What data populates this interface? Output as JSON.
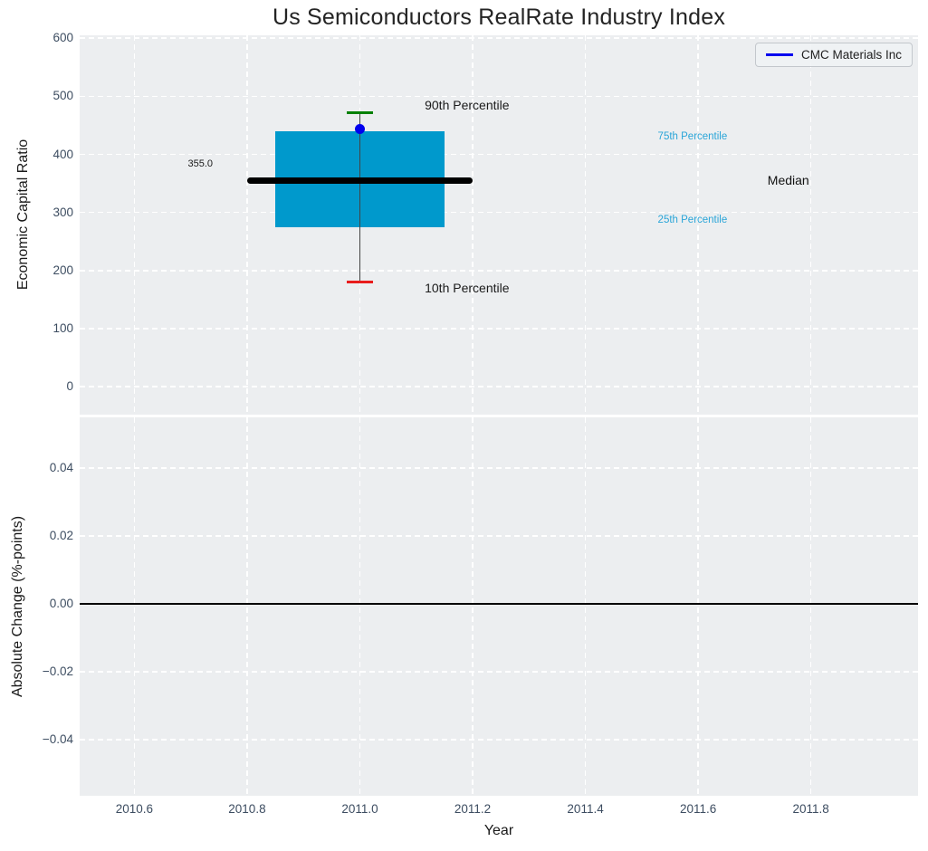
{
  "title": "Us Semiconductors RealRate Industry Index",
  "xlabel": "Year",
  "legend": {
    "label": "CMC Materials Inc",
    "color": "#0000ee"
  },
  "colors": {
    "plot_bg": "#eceef0",
    "grid": "#ffffff",
    "tick_text": "#3d4d61",
    "box": "#0099cc",
    "median": "#000000",
    "whisker": "#444444",
    "cap_top": "#008000",
    "cap_bottom": "#e81c1c",
    "marker": "#0000ee",
    "accent_text": "#2aa5d8",
    "zero_line": "#000000"
  },
  "chart_data": [
    {
      "type": "boxplot",
      "subplot": "top",
      "title": "Us Semiconductors RealRate Industry Index",
      "ylabel": "Economic Capital Ratio",
      "ylim": [
        -48,
        605
      ],
      "yticks": [
        {
          "value": 0,
          "label": "0"
        },
        {
          "value": 100,
          "label": "100"
        },
        {
          "value": 200,
          "label": "200"
        },
        {
          "value": 300,
          "label": "300"
        },
        {
          "value": 400,
          "label": "400"
        },
        {
          "value": 500,
          "label": "500"
        },
        {
          "value": 600,
          "label": "600"
        }
      ],
      "xlim": [
        2010.503,
        2011.99
      ],
      "xticks": [
        {
          "value": 2010.6,
          "label": "2010.6"
        },
        {
          "value": 2010.8,
          "label": "2010.8"
        },
        {
          "value": 2011.0,
          "label": "2011.0"
        },
        {
          "value": 2011.2,
          "label": "2011.2"
        },
        {
          "value": 2011.4,
          "label": "2011.4"
        },
        {
          "value": 2011.6,
          "label": "2011.6"
        },
        {
          "value": 2011.8,
          "label": "2011.8"
        }
      ],
      "grid": "dashed-white",
      "legend_position": "upper right",
      "box": {
        "x_center": 2011.0,
        "box_x": [
          2010.85,
          2011.15
        ],
        "median_x": [
          2010.8,
          2011.2
        ],
        "cap_x": [
          2010.976,
          2011.024
        ],
        "p10": 180,
        "p25": 275,
        "median": 355,
        "p75": 440,
        "p90": 472,
        "company_value": 444,
        "median_label": "355.0"
      },
      "annotations": [
        {
          "text": "90th Percentile",
          "x": 2011.19,
          "y": 485,
          "color": "#1a1a1a",
          "size": 14
        },
        {
          "text": "10th Percentile",
          "x": 2011.19,
          "y": 170,
          "color": "#1a1a1a",
          "size": 14
        },
        {
          "text": "75th Percentile",
          "x": 2011.59,
          "y": 430,
          "color": "#2aa5d8",
          "size": 11.5
        },
        {
          "text": "25th Percentile",
          "x": 2011.59,
          "y": 287,
          "color": "#2aa5d8",
          "size": 11.5
        },
        {
          "text": "Median",
          "x": 2011.76,
          "y": 356,
          "color": "#111111",
          "size": 14
        },
        {
          "text": "355.0",
          "x": 2010.717,
          "y": 384,
          "color": "#1a1a1a",
          "size": 11
        }
      ]
    },
    {
      "type": "line",
      "subplot": "bottom",
      "ylabel": "Absolute Change (%-points)",
      "ylim": [
        -0.0565,
        0.055
      ],
      "yticks": [
        {
          "value": 0.04,
          "label": "0.04"
        },
        {
          "value": 0.02,
          "label": "0.02"
        },
        {
          "value": 0.0,
          "label": "0.00"
        },
        {
          "value": -0.02,
          "label": "−0.02"
        },
        {
          "value": -0.04,
          "label": "−0.04"
        }
      ],
      "zero_line": 0.0,
      "series": []
    }
  ]
}
